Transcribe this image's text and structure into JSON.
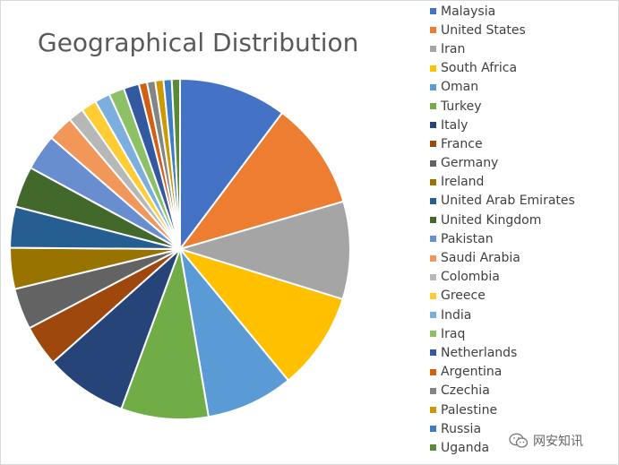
{
  "chart_data": {
    "type": "pie",
    "title": "Geographical Distribution",
    "legend_position": "right",
    "slices": [
      {
        "label": "Malaysia",
        "value": 10.5,
        "color": "#4472C4"
      },
      {
        "label": "United States",
        "value": 10.5,
        "color": "#ED7D31"
      },
      {
        "label": "Iran",
        "value": 9.5,
        "color": "#A5A5A5"
      },
      {
        "label": "South Africa",
        "value": 9.5,
        "color": "#FFC000"
      },
      {
        "label": "Oman",
        "value": 8.5,
        "color": "#5B9BD5"
      },
      {
        "label": "Turkey",
        "value": 8.5,
        "color": "#70AD47"
      },
      {
        "label": "Italy",
        "value": 8.0,
        "color": "#264478"
      },
      {
        "label": "France",
        "value": 4.0,
        "color": "#9E480E"
      },
      {
        "label": "Germany",
        "value": 4.0,
        "color": "#636363"
      },
      {
        "label": "Ireland",
        "value": 4.0,
        "color": "#997300"
      },
      {
        "label": "United Arab Emirates",
        "value": 4.0,
        "color": "#255E91"
      },
      {
        "label": "United Kingdom",
        "value": 4.0,
        "color": "#43682B"
      },
      {
        "label": "Pakistan",
        "value": 3.5,
        "color": "#698ED0"
      },
      {
        "label": "Saudi Arabia",
        "value": 2.5,
        "color": "#F1975A"
      },
      {
        "label": "Colombia",
        "value": 1.5,
        "color": "#B7B7B7"
      },
      {
        "label": "Greece",
        "value": 1.5,
        "color": "#FFCD33"
      },
      {
        "label": "India",
        "value": 1.5,
        "color": "#7CAFDD"
      },
      {
        "label": "Iraq",
        "value": 1.5,
        "color": "#8CC168"
      },
      {
        "label": "Netherlands",
        "value": 1.5,
        "color": "#335AA1"
      },
      {
        "label": "Argentina",
        "value": 0.8,
        "color": "#D26012"
      },
      {
        "label": "Czechia",
        "value": 0.8,
        "color": "#848484"
      },
      {
        "label": "Palestine",
        "value": 0.8,
        "color": "#CC9A00"
      },
      {
        "label": "Russia",
        "value": 0.8,
        "color": "#3C7DC4"
      },
      {
        "label": "Uganda",
        "value": 0.8,
        "color": "#5A8A39"
      }
    ]
  },
  "watermark": {
    "text": "网安知讯",
    "icon": "wechat-icon"
  }
}
